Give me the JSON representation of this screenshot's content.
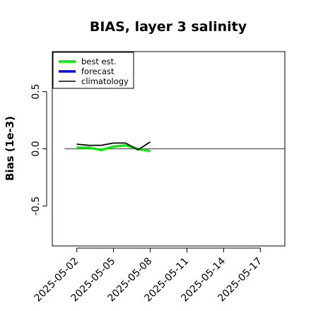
{
  "chart_data": {
    "type": "line",
    "title": "BIAS, layer 3 salinity",
    "xlabel": "",
    "ylabel": "Bias (1e-3)",
    "ylim": [
      -0.85,
      0.85
    ],
    "xlim": [
      "2025-04-30",
      "2025-05-19"
    ],
    "yticks": [
      -0.5,
      0.0,
      0.5
    ],
    "xticks": [
      "2025-05-02",
      "2025-05-05",
      "2025-05-08",
      "2025-05-11",
      "2025-05-14",
      "2025-05-17"
    ],
    "highlight_xtick": "2025-05-08",
    "highlight_color": "#228b22",
    "reference_line": {
      "y": 0.0,
      "x_from": "2025-05-01",
      "x_to": "2025-05-19",
      "color": "#555555"
    },
    "legend": {
      "position": "top-left"
    },
    "grid": false,
    "series": [
      {
        "name": "best est.",
        "color": "#00ee00",
        "x": [
          "2025-05-02",
          "2025-05-03",
          "2025-05-04",
          "2025-05-05",
          "2025-05-06",
          "2025-05-07",
          "2025-05-08"
        ],
        "values": [
          0.01,
          0.01,
          -0.01,
          0.02,
          0.03,
          0.0,
          -0.02
        ]
      },
      {
        "name": "forecast",
        "color": "#0000ff",
        "x": [],
        "values": []
      },
      {
        "name": "climatology",
        "color": "#000000",
        "x": [
          "2025-05-02",
          "2025-05-03",
          "2025-05-04",
          "2025-05-05",
          "2025-05-06",
          "2025-05-07",
          "2025-05-08"
        ],
        "values": [
          0.04,
          0.03,
          0.03,
          0.05,
          0.05,
          -0.01,
          0.06
        ]
      }
    ]
  }
}
